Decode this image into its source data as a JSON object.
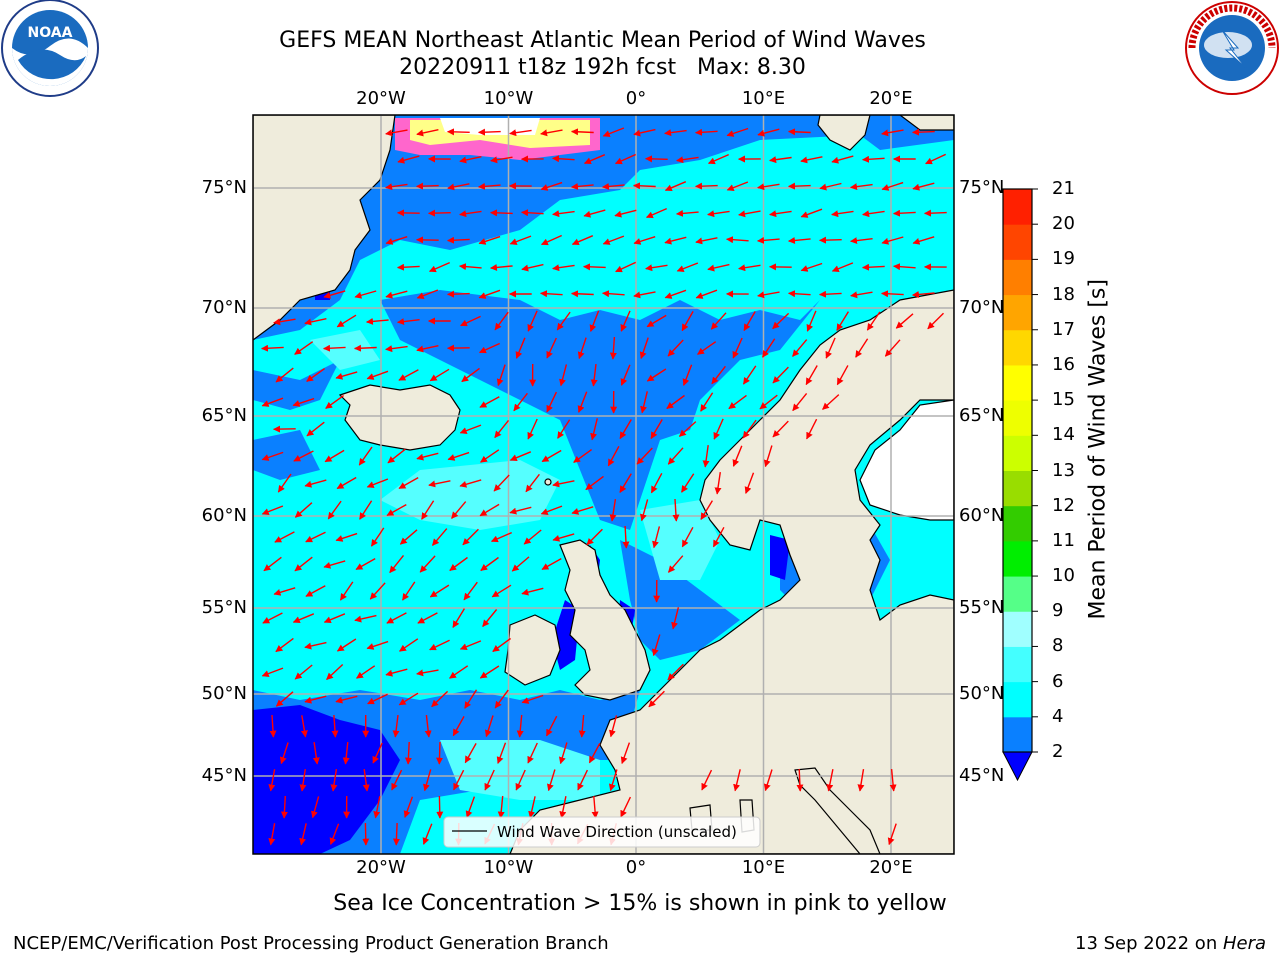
{
  "title": {
    "line1": "GEFS MEAN Northeast Atlantic Mean Period of Wind Waves",
    "line2": "20220911 t18z 192h fcst   Max: 8.30"
  },
  "logos": {
    "noara_text": "NOAA",
    "noara_ring": "NATIONAL OCEANIC AND ATMOSPHERIC ADMINISTRATION · U.S. DEPARTMENT OF COMMERCE",
    "nws_ring": "NATIONAL WEATHER SERVICE"
  },
  "map": {
    "lon_labels": [
      "20°W",
      "10°W",
      "0°",
      "10°E",
      "20°E"
    ],
    "lon_values": [
      -20,
      -10,
      0,
      10,
      20
    ],
    "lat_labels": [
      "75°N",
      "70°N",
      "65°N",
      "60°N",
      "55°N",
      "50°N",
      "45°N"
    ],
    "lat_values": [
      75,
      70,
      65,
      60,
      55,
      50,
      45
    ],
    "legend_text": "Wind Wave Direction (unscaled)",
    "colors": {
      "land": "#efecdc",
      "ocean_period_2_4": "#0a80ff",
      "ocean_period_4_6": "#00ffff",
      "ocean_period_6_8": "#44ffff",
      "ocean_period_lt_2": "#0000ff",
      "arrow": "#ff0000",
      "grid": "#b0b0b0"
    }
  },
  "colorbar": {
    "label": "Mean Period of Wind Waves [s]",
    "ticks": [
      "2",
      "4",
      "6",
      "8",
      "9",
      "10",
      "11",
      "12",
      "13",
      "14",
      "15",
      "16",
      "17",
      "18",
      "19",
      "20",
      "21"
    ],
    "colors": [
      "#0a80ff",
      "#00ffff",
      "#44ffff",
      "#a0ffff",
      "#55ff88",
      "#00ee00",
      "#33cc00",
      "#99dd00",
      "#ccff00",
      "#eeff00",
      "#ffff00",
      "#ffd700",
      "#ffa500",
      "#ff7f00",
      "#ff4500",
      "#ff2000",
      "#ff0000"
    ],
    "extend_color": "#0000ff"
  },
  "caption": "Sea Ice Concentration > 15% is shown in pink to yellow",
  "footer": {
    "left": "NCEP/EMC/Verification Post Processing Product Generation Branch",
    "right_date": "13 Sep 2022 on ",
    "right_host": "Hera"
  }
}
